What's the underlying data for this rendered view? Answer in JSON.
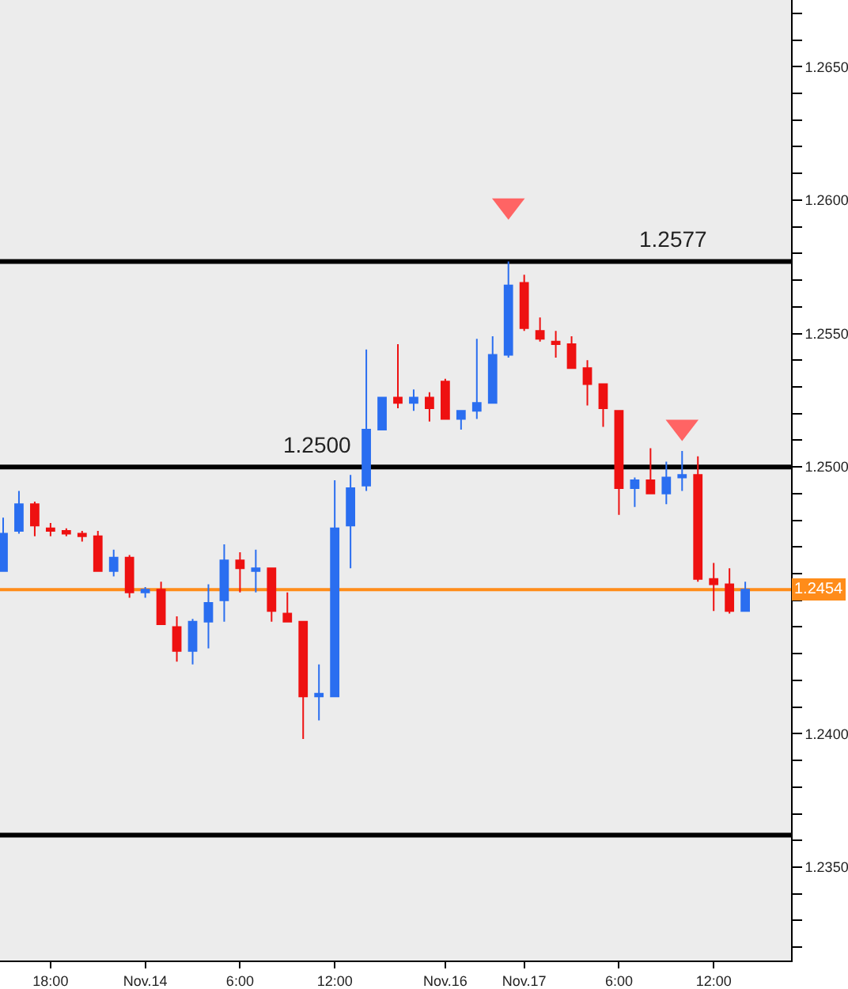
{
  "chart_data": {
    "type": "candlestick",
    "categories": [
      null,
      null,
      null,
      "18:00",
      null,
      null,
      null,
      null,
      null,
      "Nov.14",
      null,
      null,
      null,
      null,
      null,
      "6:00",
      null,
      null,
      null,
      null,
      null,
      "12:00",
      null,
      null,
      null,
      null,
      null,
      null,
      "Nov.16",
      null,
      null,
      null,
      null,
      "Nov.17",
      null,
      null,
      null,
      null,
      null,
      "6:00",
      null,
      null,
      null,
      null,
      null,
      "12:00",
      null,
      null
    ],
    "ohlc": [
      [
        1.2461,
        1.2481,
        1.2461,
        1.2475
      ],
      [
        1.2476,
        1.2491,
        1.2475,
        1.2486
      ],
      [
        1.2486,
        1.2487,
        1.2474,
        1.2478
      ],
      [
        1.2477,
        1.2479,
        1.2474,
        1.2476
      ],
      [
        1.2476,
        1.2477,
        1.2474,
        1.2475
      ],
      [
        1.2475,
        1.2476,
        1.2472,
        1.2474
      ],
      [
        1.2474,
        1.2476,
        1.2461,
        1.2461
      ],
      [
        1.2461,
        1.2469,
        1.2459,
        1.2466
      ],
      [
        1.2466,
        1.2467,
        1.2451,
        1.2453
      ],
      [
        1.2453,
        1.2455,
        1.2451,
        1.2454
      ],
      [
        1.2454,
        1.2457,
        1.2441,
        1.2441
      ],
      [
        1.244,
        1.2444,
        1.2427,
        1.2431
      ],
      [
        1.2431,
        1.2443,
        1.2426,
        1.2442
      ],
      [
        1.2442,
        1.2456,
        1.2432,
        1.2449
      ],
      [
        1.245,
        1.2471,
        1.2442,
        1.2465
      ],
      [
        1.2465,
        1.2468,
        1.2453,
        1.2462
      ],
      [
        1.2461,
        1.2469,
        1.2453,
        1.2462
      ],
      [
        1.2462,
        1.2462,
        1.2442,
        1.2446
      ],
      [
        1.2445,
        1.2453,
        1.2442,
        1.2442
      ],
      [
        1.2442,
        1.2442,
        1.2398,
        1.2414
      ],
      [
        1.2414,
        1.2426,
        1.2405,
        1.2415
      ],
      [
        1.2414,
        1.2495,
        1.2414,
        1.2477
      ],
      [
        1.2478,
        1.2497,
        1.2462,
        1.2492
      ],
      [
        1.2493,
        1.2544,
        1.2491,
        1.2514
      ],
      [
        1.2514,
        1.2526,
        1.2514,
        1.2526
      ],
      [
        1.2526,
        1.2546,
        1.2522,
        1.2524
      ],
      [
        1.2524,
        1.2529,
        1.2521,
        1.2526
      ],
      [
        1.2526,
        1.2528,
        1.2517,
        1.2522
      ],
      [
        1.2532,
        1.2533,
        1.2518,
        1.2518
      ],
      [
        1.2518,
        1.2521,
        1.2514,
        1.2521
      ],
      [
        1.2521,
        1.2548,
        1.2518,
        1.2524
      ],
      [
        1.2524,
        1.2549,
        1.2524,
        1.2542
      ],
      [
        1.2542,
        1.2577,
        1.2541,
        1.2568
      ],
      [
        1.2569,
        1.2572,
        1.2551,
        1.2552
      ],
      [
        1.2551,
        1.2556,
        1.2547,
        1.2548
      ],
      [
        1.2547,
        1.2551,
        1.2541,
        1.2546
      ],
      [
        1.2546,
        1.2549,
        1.2537,
        1.2537
      ],
      [
        1.2537,
        1.254,
        1.2523,
        1.2531
      ],
      [
        1.2531,
        1.2531,
        1.2515,
        1.2522
      ],
      [
        1.2521,
        1.2521,
        1.2482,
        1.2492
      ],
      [
        1.2492,
        1.2496,
        1.2485,
        1.2495
      ],
      [
        1.2495,
        1.2507,
        1.249,
        1.249
      ],
      [
        1.249,
        1.2502,
        1.2486,
        1.2496
      ],
      [
        1.2496,
        1.2506,
        1.2491,
        1.2497
      ],
      [
        1.2497,
        1.2504,
        1.2457,
        1.2458
      ],
      [
        1.2458,
        1.2464,
        1.2446,
        1.2456
      ],
      [
        1.2456,
        1.2462,
        1.2445,
        1.2446
      ],
      [
        1.2446,
        1.2457,
        1.2446,
        1.2454
      ]
    ],
    "colors": [
      "#2a6ef0",
      "#2a6ef0",
      "#ee1111",
      "#ee1111",
      "#ee1111",
      "#ee1111",
      "#ee1111",
      "#2a6ef0",
      "#ee1111",
      "#2a6ef0",
      "#ee1111",
      "#ee1111",
      "#2a6ef0",
      "#2a6ef0",
      "#2a6ef0",
      "#ee1111",
      "#2a6ef0",
      "#ee1111",
      "#ee1111",
      "#ee1111",
      "#2a6ef0",
      "#2a6ef0",
      "#2a6ef0",
      "#2a6ef0",
      "#2a6ef0",
      "#ee1111",
      "#2a6ef0",
      "#ee1111",
      "#ee1111",
      "#2a6ef0",
      "#2a6ef0",
      "#2a6ef0",
      "#2a6ef0",
      "#ee1111",
      "#ee1111",
      "#ee1111",
      "#ee1111",
      "#ee1111",
      "#ee1111",
      "#ee1111",
      "#2a6ef0",
      "#ee1111",
      "#2a6ef0",
      "#2a6ef0",
      "#ee1111",
      "#ee1111",
      "#ee1111",
      "#2a6ef0"
    ],
    "series": [
      {
        "type": "scatter",
        "marker": "triangle",
        "color": "#ff6464",
        "values": [
          null,
          null,
          null,
          null,
          null,
          null,
          null,
          null,
          null,
          null,
          null,
          null,
          null,
          null,
          null,
          null,
          null,
          null,
          null,
          null,
          null,
          null,
          null,
          null,
          null,
          null,
          null,
          null,
          null,
          null,
          null,
          null,
          1.2598,
          null,
          null,
          null,
          null,
          null,
          null,
          null,
          null,
          null,
          null,
          1.2515,
          null,
          null,
          null,
          null
        ]
      }
    ],
    "ref_lines": [
      {
        "axis": "y",
        "value": 1.2577,
        "label": "1.2577"
      },
      {
        "axis": "y",
        "value": 1.25,
        "label": "1.2500"
      },
      {
        "axis": "y",
        "value": 1.2362
      },
      {
        "axis": "y",
        "value": 1.2454,
        "label": "1.2454",
        "color": "#ff8c1a"
      }
    ],
    "ylim": [
      1.2315,
      1.2675
    ],
    "yticks": [
      {
        "value": 1.235,
        "label": "1.2350"
      },
      {
        "value": 1.24,
        "label": "1.2400"
      },
      {
        "value": 1.25,
        "label": "1.2500"
      },
      {
        "value": 1.255,
        "label": "1.2550"
      },
      {
        "value": 1.26,
        "label": "1.2600"
      },
      {
        "value": 1.265,
        "label": "1.2650"
      }
    ],
    "grid": false
  }
}
